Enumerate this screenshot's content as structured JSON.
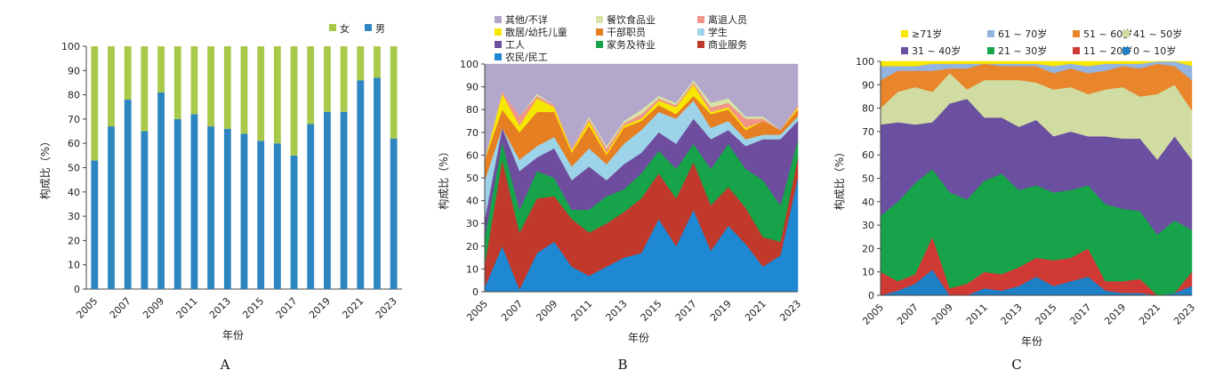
{
  "chart_data": [
    {
      "panel": "A",
      "type": "bar",
      "stacked": true,
      "xlabel": "年份",
      "ylabel": "构成比（%）",
      "ylim": [
        0,
        100
      ],
      "yticks": [
        0,
        10,
        20,
        30,
        40,
        50,
        60,
        70,
        80,
        90,
        100
      ],
      "categories": [
        "2005",
        "2006",
        "2007",
        "2008",
        "2009",
        "2010",
        "2011",
        "2012",
        "2013",
        "2014",
        "2015",
        "2016",
        "2017",
        "2018",
        "2019",
        "2020",
        "2021",
        "2022",
        "2023"
      ],
      "xtick_labels": [
        "2005",
        "2007",
        "2009",
        "2011",
        "2013",
        "2015",
        "2017",
        "2019",
        "2021",
        "2023"
      ],
      "legend": [
        "女",
        "男"
      ],
      "series": [
        {
          "name": "男",
          "color": "#2E86C1",
          "values": [
            53,
            67,
            78,
            65,
            81,
            70,
            72,
            67,
            66,
            64,
            61,
            60,
            55,
            68,
            73,
            73,
            86,
            87,
            62
          ]
        },
        {
          "name": "女",
          "color": "#A9C94B",
          "values": [
            47,
            33,
            22,
            35,
            19,
            30,
            28,
            33,
            34,
            36,
            39,
            40,
            45,
            32,
            27,
            27,
            14,
            13,
            38
          ]
        }
      ]
    },
    {
      "panel": "B",
      "type": "area",
      "stacked": true,
      "xlabel": "年份",
      "ylabel": "构成比（%）",
      "ylim": [
        0,
        100
      ],
      "yticks": [
        0,
        10,
        20,
        30,
        40,
        50,
        60,
        70,
        80,
        90,
        100
      ],
      "x": [
        "2005",
        "2006",
        "2007",
        "2008",
        "2009",
        "2010",
        "2011",
        "2012",
        "2013",
        "2014",
        "2015",
        "2016",
        "2017",
        "2018",
        "2019",
        "2020",
        "2021",
        "2022",
        "2023"
      ],
      "xtick_labels": [
        "2005",
        "2007",
        "2009",
        "2011",
        "2013",
        "2015",
        "2017",
        "2019",
        "2021",
        "2023"
      ],
      "legend_order": [
        "其他/不详",
        "餐饮食品业",
        "离退人员",
        "散居/幼托儿童",
        "干部职员",
        "学生",
        "工人",
        "家务及待业",
        "商业服务",
        "农民/民工"
      ],
      "series": [
        {
          "name": "农民/民工",
          "color": "#1E88D2",
          "values": [
            2,
            20,
            1,
            17,
            22,
            11,
            7,
            11,
            15,
            17,
            32,
            20,
            36,
            18,
            29,
            21,
            11,
            16,
            50
          ]
        },
        {
          "name": "商业服务",
          "color": "#C0392B",
          "values": [
            10,
            38,
            25,
            24,
            20,
            21,
            19,
            19,
            20,
            24,
            20,
            21,
            21,
            20,
            17,
            16,
            13,
            6,
            9
          ]
        },
        {
          "name": "家务及待业",
          "color": "#16A34A",
          "values": [
            12,
            8,
            10,
            12,
            8,
            4,
            10,
            12,
            10,
            11,
            10,
            13,
            8,
            16,
            19,
            17,
            25,
            16,
            8
          ]
        },
        {
          "name": "工人",
          "color": "#6E4C9E",
          "values": [
            8,
            6,
            17,
            6,
            13,
            13,
            19,
            7,
            11,
            9,
            8,
            11,
            11,
            13,
            6,
            10,
            18,
            29,
            8
          ]
        },
        {
          "name": "学生",
          "color": "#9DD3E8",
          "values": [
            17,
            0,
            5,
            5,
            5,
            6,
            8,
            7,
            9,
            10,
            9,
            11,
            8,
            5,
            4,
            3,
            2,
            2,
            2
          ]
        },
        {
          "name": "干部职员",
          "color": "#E67E22",
          "values": [
            9,
            8,
            12,
            15,
            11,
            6,
            10,
            4,
            7,
            4,
            3,
            2,
            2,
            6,
            5,
            4,
            6,
            2,
            3
          ]
        },
        {
          "name": "散居/幼托儿童",
          "color": "#F5E700",
          "values": [
            0,
            7,
            3,
            6,
            2,
            1,
            2,
            1,
            1,
            1,
            2,
            3,
            5,
            1,
            1,
            1,
            0,
            0,
            1
          ]
        },
        {
          "name": "离退人员",
          "color": "#F1948A",
          "values": [
            0,
            1,
            4,
            1,
            1,
            1,
            1,
            2,
            1,
            2,
            1,
            1,
            1,
            2,
            2,
            4,
            1,
            0,
            1
          ]
        },
        {
          "name": "餐饮食品业",
          "color": "#D6E5A6",
          "values": [
            0,
            0,
            0,
            1,
            0,
            0,
            1,
            1,
            1,
            2,
            1,
            1,
            1,
            2,
            2,
            1,
            1,
            0,
            0
          ]
        },
        {
          "name": "其他/不详",
          "color": "#B3A7CC",
          "values": [
            42,
            12,
            23,
            13,
            18,
            37,
            23,
            36,
            25,
            20,
            14,
            17,
            7,
            17,
            15,
            23,
            23,
            29,
            18
          ]
        }
      ]
    },
    {
      "panel": "C",
      "type": "area",
      "stacked": true,
      "xlabel": "年份",
      "ylabel": "构成比（%）",
      "ylim": [
        0,
        100
      ],
      "yticks": [
        0,
        10,
        20,
        30,
        40,
        50,
        60,
        70,
        80,
        90,
        100
      ],
      "x": [
        "2005",
        "2006",
        "2007",
        "2008",
        "2009",
        "2010",
        "2011",
        "2012",
        "2013",
        "2014",
        "2015",
        "2016",
        "2017",
        "2018",
        "2019",
        "2020",
        "2021",
        "2022",
        "2023"
      ],
      "xtick_labels": [
        "2005",
        "2007",
        "2009",
        "2011",
        "2013",
        "2015",
        "2017",
        "2019",
        "2021",
        "2023"
      ],
      "legend_order": [
        "≥71岁",
        "61 ~ 70岁",
        "51 ~ 60岁",
        "41 ~ 50岁",
        "31 ~ 40岁",
        "21 ~ 30岁",
        "11 ~ 20岁",
        "0 ~ 10岁"
      ],
      "series": [
        {
          "name": "0 ~ 10岁",
          "color": "#1E7FC4",
          "values": [
            0,
            2,
            5,
            11,
            0,
            0,
            3,
            2,
            4,
            8,
            4,
            6,
            8,
            2,
            1,
            1,
            0,
            1,
            4
          ]
        },
        {
          "name": "11 ~ 20岁",
          "color": "#D03A35",
          "values": [
            10,
            4,
            4,
            14,
            3,
            5,
            7,
            7,
            8,
            8,
            11,
            10,
            12,
            4,
            5,
            6,
            0,
            0,
            6
          ]
        },
        {
          "name": "21 ~ 30岁",
          "color": "#17A34A",
          "values": [
            24,
            34,
            39,
            29,
            41,
            36,
            39,
            43,
            33,
            31,
            29,
            29,
            27,
            33,
            31,
            29,
            26,
            31,
            18
          ]
        },
        {
          "name": "31 ~ 40岁",
          "color": "#6B4FA0",
          "values": [
            39,
            34,
            25,
            20,
            38,
            43,
            27,
            24,
            27,
            28,
            24,
            25,
            21,
            29,
            30,
            31,
            32,
            36,
            30
          ]
        },
        {
          "name": "41 ~ 50岁",
          "color": "#D0DCA1",
          "values": [
            7,
            13,
            16,
            13,
            13,
            4,
            16,
            16,
            20,
            16,
            20,
            19,
            18,
            20,
            22,
            18,
            28,
            22,
            21
          ]
        },
        {
          "name": "51 ~ 60岁",
          "color": "#E9852A",
          "values": [
            12,
            9,
            7,
            9,
            2,
            9,
            7,
            6,
            6,
            7,
            7,
            8,
            9,
            8,
            9,
            12,
            13,
            8,
            13
          ]
        },
        {
          "name": "61 ~ 70岁",
          "color": "#93B4E0",
          "values": [
            6,
            2,
            2,
            3,
            2,
            2,
            0,
            1,
            1,
            1,
            3,
            2,
            3,
            3,
            1,
            2,
            1,
            2,
            6
          ]
        },
        {
          "name": "≥71岁",
          "color": "#F7E600",
          "values": [
            2,
            2,
            2,
            1,
            1,
            1,
            1,
            1,
            1,
            1,
            2,
            1,
            2,
            1,
            1,
            1,
            0,
            0,
            2
          ]
        }
      ]
    }
  ]
}
